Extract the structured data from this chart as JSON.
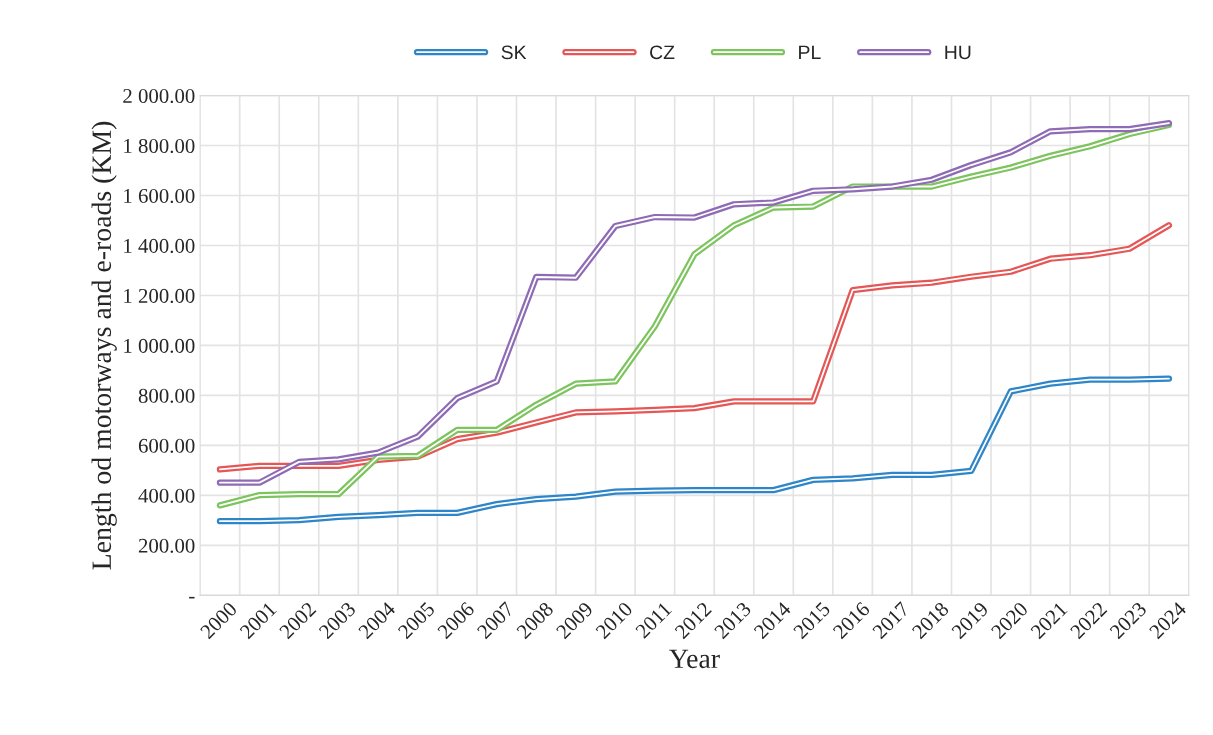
{
  "chart_data": {
    "type": "line",
    "xlabel": "Year",
    "ylabel": "Length od motorways and e-roads (KM)",
    "categories": [
      "2000",
      "2001",
      "2002",
      "2003",
      "2004",
      "2005",
      "2006",
      "2007",
      "2008",
      "2009",
      "2010",
      "2011",
      "2012",
      "2013",
      "2014",
      "2015",
      "2016",
      "2017",
      "2018",
      "2019",
      "2020",
      "2021",
      "2022",
      "2023",
      "2024"
    ],
    "series": [
      {
        "name": "SK",
        "color": "#2e86c8",
        "values": [
          297,
          297,
          301,
          314,
          321,
          330,
          330,
          365,
          385,
          395,
          415,
          419,
          421,
          421,
          421,
          462,
          468,
          482,
          482,
          498,
          816,
          847,
          863,
          863,
          867
        ]
      },
      {
        "name": "CZ",
        "color": "#e45756",
        "values": [
          504,
          518,
          518,
          518,
          542,
          555,
          625,
          651,
          692,
          732,
          736,
          742,
          749,
          776,
          776,
          776,
          1221,
          1240,
          1251,
          1275,
          1295,
          1347,
          1361,
          1387,
          1481
        ]
      },
      {
        "name": "PL",
        "color": "#7dc45e",
        "values": [
          360,
          401,
          405,
          405,
          555,
          558,
          662,
          662,
          763,
          847,
          856,
          1077,
          1365,
          1481,
          1552,
          1556,
          1636,
          1636,
          1636,
          1676,
          1712,
          1759,
          1797,
          1846,
          1882
        ]
      },
      {
        "name": "HU",
        "color": "#8e6bb4",
        "values": [
          451,
          451,
          534,
          544,
          571,
          635,
          789,
          856,
          1274,
          1271,
          1478,
          1514,
          1512,
          1565,
          1572,
          1619,
          1625,
          1636,
          1663,
          1722,
          1773,
          1857,
          1866,
          1866,
          1890
        ]
      }
    ],
    "ylim": [
      0,
      2000
    ],
    "yticks": [
      {
        "value": 0,
        "label": "-"
      },
      {
        "value": 200,
        "label": "200.00"
      },
      {
        "value": 400,
        "label": "400.00"
      },
      {
        "value": 600,
        "label": "600.00"
      },
      {
        "value": 800,
        "label": "800.00"
      },
      {
        "value": 1000,
        "label": "1 000.00"
      },
      {
        "value": 1200,
        "label": "1 200.00"
      },
      {
        "value": 1400,
        "label": "1 400.00"
      },
      {
        "value": 1600,
        "label": "1 600.00"
      },
      {
        "value": 1800,
        "label": "1 800.00"
      },
      {
        "value": 2000,
        "label": "2 000.00"
      }
    ],
    "grid": true,
    "legend": "top",
    "marker": "none",
    "line_style": "solid"
  }
}
